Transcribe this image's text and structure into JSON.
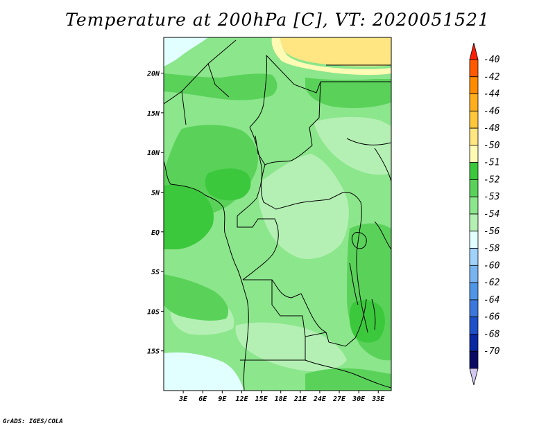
{
  "title": "Temperature at 200hPa [C], VT: 2020051521",
  "footer": "GrADS: IGES/COLA",
  "map": {
    "lon_range": [
      0,
      35
    ],
    "lat_range": [
      -20,
      24.5
    ],
    "x_ticks": [
      "3E",
      "6E",
      "9E",
      "12E",
      "15E",
      "18E",
      "21E",
      "24E",
      "27E",
      "30E",
      "33E"
    ],
    "y_ticks": [
      "20N",
      "15N",
      "10N",
      "5N",
      "EQ",
      "5S",
      "10S",
      "15S"
    ]
  },
  "colorbar": {
    "labels": [
      "-40",
      "-42",
      "-44",
      "-46",
      "-48",
      "-50",
      "-51",
      "-52",
      "-53",
      "-54",
      "-56",
      "-58",
      "-60",
      "-62",
      "-64",
      "-66",
      "-68",
      "-70"
    ],
    "colors": [
      "#ff1e00",
      "#ff5a00",
      "#ff8c00",
      "#ffaf1e",
      "#ffc83c",
      "#ffe682",
      "#fffab4",
      "#3cc83c",
      "#5ad25a",
      "#8ce68c",
      "#b4f0b4",
      "#e1ffff",
      "#a0d2fa",
      "#78b4f0",
      "#5096e6",
      "#3c78dc",
      "#1e50c8",
      "#0a28a0",
      "#0a0a64",
      "#d2c8f0"
    ]
  },
  "palette": {
    "lightest_green": "#b4f0b4",
    "light_green": "#8ce68c",
    "mid_green": "#5ad25a",
    "dark_green": "#3cc83c",
    "cyan": "#e1ffff",
    "pale_yellow": "#fffab4",
    "yellow": "#ffe682"
  }
}
